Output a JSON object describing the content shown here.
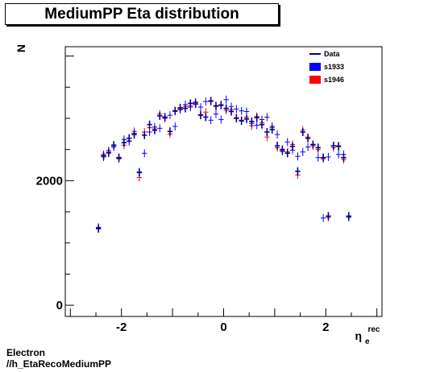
{
  "title": "MediumPP Eta distribution",
  "footer": {
    "line1": "Electron",
    "line2": "//h_EtaRecoMediumPP"
  },
  "chart_data": {
    "type": "scatter",
    "title": "MediumPP Eta distribution",
    "xlabel": "η_e^rec",
    "ylabel": "N",
    "xlim": [
      -3.1,
      3.1
    ],
    "ylim": [
      -180,
      4150
    ],
    "x_ticks": [
      "-2",
      "0",
      "2"
    ],
    "y_ticks": [
      "0",
      "2000"
    ],
    "legend_position": "top-right",
    "bin_halfwidth": 0.05,
    "colors": {
      "Data": "#000099",
      "s1933": "#0000ff",
      "s1946": "#ff0000"
    },
    "x": [
      -2.45,
      -2.35,
      -2.25,
      -2.15,
      -2.05,
      -1.95,
      -1.85,
      -1.75,
      -1.65,
      -1.55,
      -1.45,
      -1.35,
      -1.25,
      -1.15,
      -1.05,
      -0.95,
      -0.85,
      -0.75,
      -0.65,
      -0.55,
      -0.45,
      -0.35,
      -0.25,
      -0.15,
      -0.05,
      0.05,
      0.15,
      0.25,
      0.35,
      0.45,
      0.55,
      0.65,
      0.75,
      0.85,
      0.95,
      1.05,
      1.15,
      1.25,
      1.35,
      1.45,
      1.55,
      1.65,
      1.75,
      1.85,
      1.95,
      2.05,
      2.15,
      2.25,
      2.35,
      2.45
    ],
    "series": [
      {
        "name": "Data",
        "values": [
          1230,
          2400,
          2450,
          2570,
          2370,
          2610,
          2680,
          2740,
          2130,
          2730,
          2900,
          2810,
          3040,
          3020,
          2790,
          3120,
          3170,
          3160,
          3240,
          3230,
          3050,
          3020,
          3280,
          3200,
          3210,
          3160,
          3110,
          3000,
          2960,
          2990,
          2950,
          3010,
          2900,
          2780,
          2820,
          2560,
          2500,
          2440,
          2550,
          2150,
          2780,
          2680,
          2580,
          2530,
          2370,
          1430,
          2560,
          2550,
          2370,
          1430
        ]
      },
      {
        "name": "s1933",
        "values": [
          1250,
          2380,
          2480,
          2540,
          2360,
          2660,
          2630,
          2760,
          2140,
          2440,
          2780,
          2860,
          2840,
          3010,
          3050,
          2870,
          3140,
          3220,
          3180,
          3260,
          3180,
          3270,
          2970,
          3070,
          2980,
          3300,
          3190,
          3150,
          3120,
          3110,
          2920,
          2890,
          2980,
          3020,
          2870,
          2740,
          2470,
          2620,
          2490,
          2390,
          2460,
          2540,
          2580,
          2370,
          1400,
          2380,
          2560,
          2420,
          2420,
          1410
        ]
      },
      {
        "name": "s1946",
        "values": [
          1240,
          2420,
          2440,
          2560,
          2350,
          2570,
          2640,
          2790,
          2050,
          2780,
          2850,
          2830,
          3070,
          3000,
          2750,
          3110,
          3150,
          3190,
          3200,
          3250,
          3060,
          3100,
          3270,
          3190,
          3220,
          3130,
          3140,
          3010,
          2970,
          3020,
          2880,
          3030,
          2930,
          2700,
          2850,
          2530,
          2480,
          2460,
          2580,
          2090,
          2810,
          2700,
          2560,
          2500,
          2350,
          1410,
          2530,
          2560,
          2340,
          1430
        ]
      }
    ]
  }
}
